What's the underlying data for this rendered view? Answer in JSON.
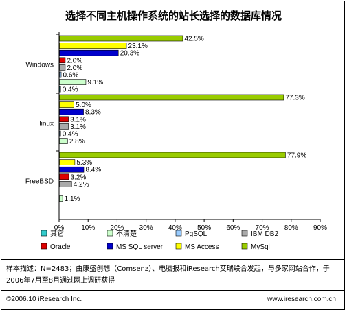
{
  "chart_data": {
    "type": "bar",
    "orientation": "horizontal",
    "title": "选择不同主机操作系统的站长选择的数据库情况",
    "categories": [
      "Windows",
      "linux",
      "FreeBSD"
    ],
    "series": [
      {
        "name": "MySql",
        "color": "#99cc00",
        "values": [
          42.5,
          77.3,
          77.9
        ]
      },
      {
        "name": "MS Access",
        "color": "#ffff00",
        "values": [
          23.1,
          5.0,
          5.3
        ]
      },
      {
        "name": "MS SQL server",
        "color": "#0000cc",
        "values": [
          20.3,
          8.3,
          8.4
        ]
      },
      {
        "name": "Oracle",
        "color": "#dd0000",
        "values": [
          2.0,
          3.1,
          3.2
        ]
      },
      {
        "name": "IBM DB2",
        "color": "#aaaaaa",
        "values": [
          2.0,
          3.1,
          4.2
        ]
      },
      {
        "name": "PgSQL",
        "color": "#99ccff",
        "values": [
          0.6,
          0.4,
          0
        ]
      },
      {
        "name": "不清楚",
        "color": "#ccffcc",
        "values": [
          9.1,
          2.8,
          1.1
        ]
      },
      {
        "name": "其它",
        "color": "#33cccc",
        "values": [
          0.4,
          0,
          0
        ]
      }
    ],
    "value_labels": [
      [
        "42.5%",
        "23.1%",
        "20.3%",
        "2.0%",
        "2.0%",
        "0.6%",
        "9.1%",
        "0.4%"
      ],
      [
        "77.3%",
        "5.0%",
        "8.3%",
        "3.1%",
        "3.1%",
        "0.4%",
        "2.8%",
        ""
      ],
      [
        "77.9%",
        "5.3%",
        "8.4%",
        "3.2%",
        "4.2%",
        "",
        "1.1%",
        ""
      ]
    ],
    "xlim": [
      0,
      90
    ],
    "x_ticks": [
      "0%",
      "10%",
      "20%",
      "30%",
      "40%",
      "50%",
      "60%",
      "70%",
      "80%",
      "90%"
    ],
    "legend_order": [
      "其它",
      "不清楚",
      "PgSQL",
      "IBM DB2",
      "Oracle",
      "MS SQL server",
      "MS Access",
      "MySql"
    ],
    "legend": "bottom",
    "grid": false
  },
  "note": "样本描述：N=2483；由康盛创想（Comsenz）、电脑报和iResearch艾瑞联合发起，与多家网站合作，于2006年7月至8月通过网上调研获得",
  "footer": {
    "copyright": "©2006.10 iResearch Inc.",
    "url": "www.iresearch.com.cn"
  }
}
